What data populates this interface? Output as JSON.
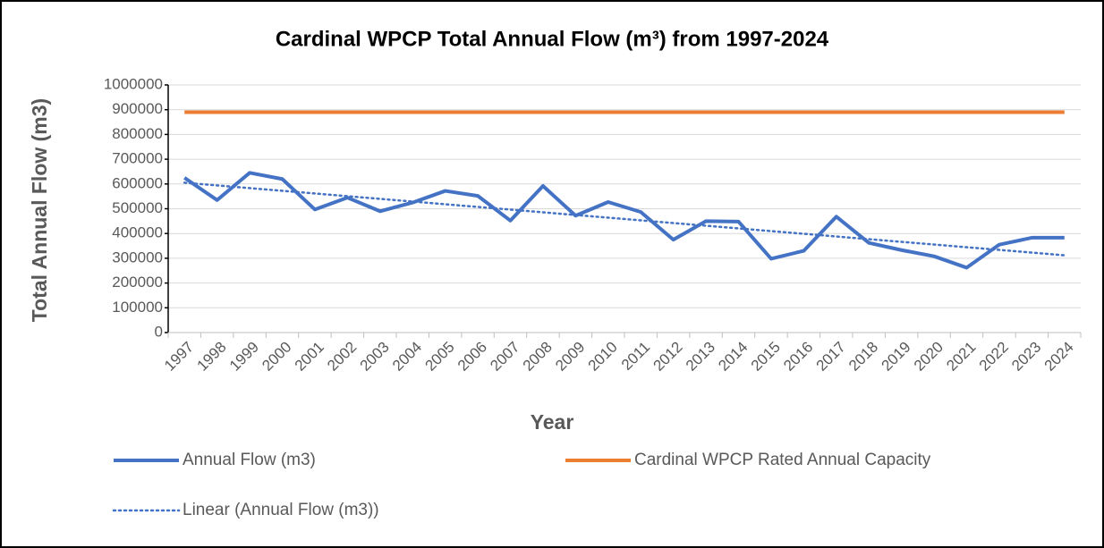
{
  "chart_data": {
    "type": "line",
    "title": "Cardinal WPCP Total Annual Flow (m³) from 1997-2024",
    "x_label": "Year",
    "y_label": "Total Annual Flow (m3)",
    "categories": [
      "1997",
      "1998",
      "1999",
      "2000",
      "2001",
      "2002",
      "2003",
      "2004",
      "2005",
      "2006",
      "2007",
      "2008",
      "2009",
      "2010",
      "2011",
      "2012",
      "2013",
      "2014",
      "2015",
      "2016",
      "2017",
      "2018",
      "2019",
      "2020",
      "2021",
      "2022",
      "2023",
      "2024"
    ],
    "series": [
      {
        "name": "Annual Flow (m3)",
        "color": "#4472c4",
        "style": "solid",
        "values": [
          625000,
          535000,
          645000,
          620000,
          497000,
          545000,
          490000,
          525000,
          572000,
          552000,
          452000,
          592000,
          472000,
          527000,
          487000,
          375000,
          450000,
          448000,
          298000,
          330000,
          468000,
          362000,
          333000,
          308000,
          262000,
          355000,
          383000,
          383000
        ]
      },
      {
        "name": "Cardinal WPCP Rated Annual Capacity",
        "color": "#ed7d31",
        "style": "solid",
        "values": [
          890000,
          890000,
          890000,
          890000,
          890000,
          890000,
          890000,
          890000,
          890000,
          890000,
          890000,
          890000,
          890000,
          890000,
          890000,
          890000,
          890000,
          890000,
          890000,
          890000,
          890000,
          890000,
          890000,
          890000,
          890000,
          890000,
          890000,
          890000
        ]
      },
      {
        "name": "Linear (Annual Flow (m3))",
        "color": "#4472c4",
        "style": "dotted",
        "values": [
          605000,
          594150,
          583300,
          572450,
          561600,
          550750,
          539900,
          529050,
          518200,
          507350,
          496500,
          485650,
          474800,
          463950,
          453100,
          442250,
          431400,
          420550,
          409700,
          398850,
          388000,
          377150,
          366300,
          355450,
          344600,
          333750,
          322900,
          312050
        ]
      }
    ],
    "ylim": [
      0,
      1000000
    ],
    "yticks": [
      0,
      100000,
      200000,
      300000,
      400000,
      500000,
      600000,
      700000,
      800000,
      900000,
      1000000
    ],
    "grid": true,
    "legend": "bottom"
  }
}
